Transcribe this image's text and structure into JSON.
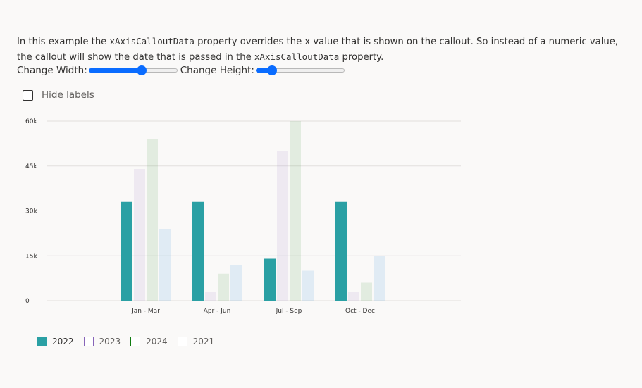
{
  "description": {
    "part1": "In this example the ",
    "code1": "xAxisCalloutData",
    "part2": " property overrides the x value that is shown on the callout. So instead of a numeric value, the callout will show the date that is passed in the ",
    "code2": "xAxisCalloutData",
    "part3": " property."
  },
  "controls": {
    "width_label": "Change Width:",
    "width_value": 0.6,
    "height_label": "Change Height:",
    "height_value": 0.18,
    "hide_labels_label": "Hide labels",
    "hide_labels_checked": false
  },
  "chart_data": {
    "type": "bar",
    "categories": [
      "Jan - Mar",
      "Apr - Jun",
      "Jul - Sep",
      "Oct - Dec"
    ],
    "series": [
      {
        "name": "2022",
        "color": "#2aa0a4",
        "active": true,
        "values": [
          33000,
          33000,
          14000,
          33000
        ]
      },
      {
        "name": "2023",
        "color": "#8764b8",
        "active": false,
        "values": [
          44000,
          3000,
          50000,
          3000
        ]
      },
      {
        "name": "2024",
        "color": "#107c10",
        "active": false,
        "values": [
          54000,
          9000,
          60000,
          6000
        ]
      },
      {
        "name": "2021",
        "color": "#0078d4",
        "active": false,
        "values": [
          24000,
          12000,
          10000,
          15000
        ]
      }
    ],
    "yticks": [
      0,
      15000,
      30000,
      45000,
      60000
    ],
    "ytick_labels": [
      "0",
      "15k",
      "30k",
      "45k",
      "60k"
    ],
    "ylim": [
      0,
      60000
    ],
    "grid": true,
    "legend_position": "bottom-left"
  }
}
